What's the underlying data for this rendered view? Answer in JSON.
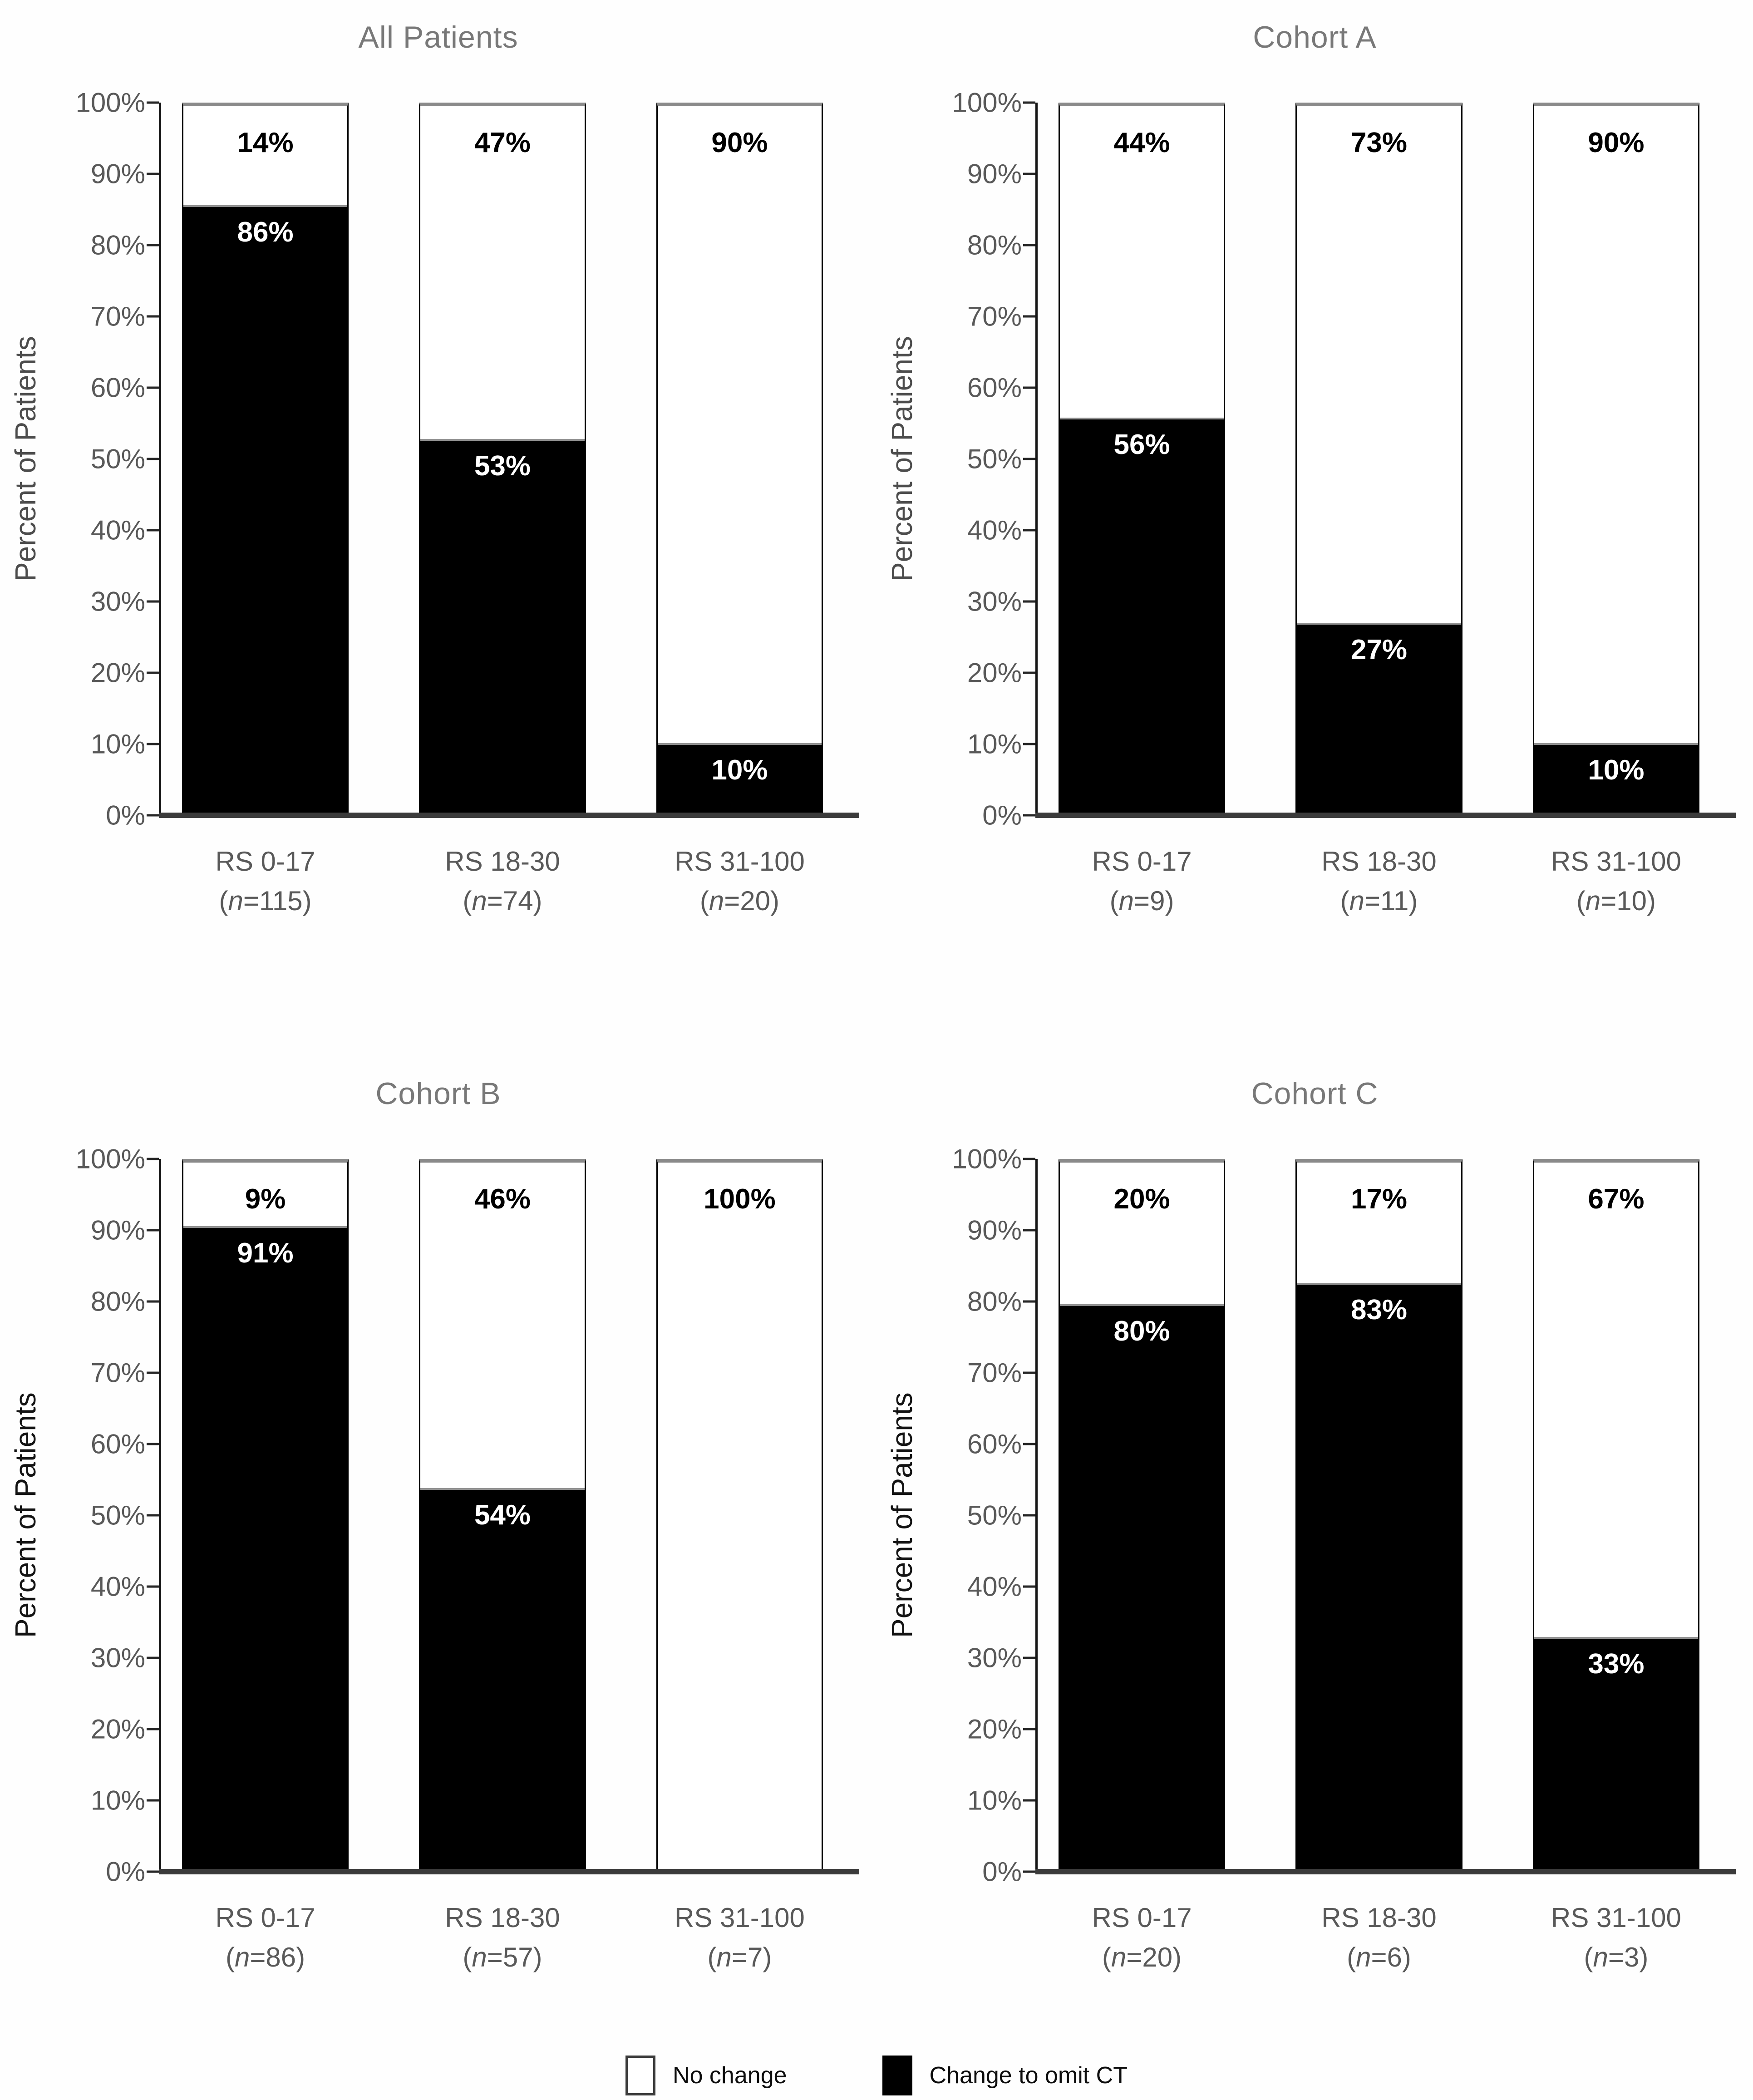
{
  "page": {
    "background": "#fefefe"
  },
  "colors": {
    "title": "#787878",
    "tick_label": "#595959",
    "y_axis_label_top": "#4c4c4c",
    "y_axis_label_bottom": "#131313",
    "axis_line": "#161616",
    "baseline": "#3b3b3b",
    "bar_fill_no_change": "#ffffff",
    "bar_fill_omit_ct": "#000000",
    "bar_border": "#000000",
    "bar_top_edge": "#8a8a8a"
  },
  "y_axis": {
    "label": "Percent of Patients",
    "ticks": [
      "100%",
      "90%",
      "80%",
      "70%",
      "60%",
      "50%",
      "40%",
      "30%",
      "20%",
      "10%",
      "0%"
    ]
  },
  "legend": {
    "items": [
      {
        "swatch": "#ffffff",
        "label": "No change"
      },
      {
        "swatch": "#000000",
        "label": "Change to omit CT"
      }
    ]
  },
  "chart_data": [
    {
      "type": "bar",
      "stacked": true,
      "title": "All Patients",
      "ylabel": "Percent of Patients",
      "ylim": [
        0,
        100
      ],
      "grid": false,
      "categories": [
        "RS 0-17",
        "RS 18-30",
        "RS 31-100"
      ],
      "n_values": [
        "115",
        "74",
        "20"
      ],
      "series": [
        {
          "name": "Change to omit CT",
          "color": "#000000",
          "values": [
            86,
            53,
            10
          ]
        },
        {
          "name": "No change",
          "color": "#ffffff",
          "values": [
            14,
            47,
            90
          ]
        }
      ],
      "bar_labels": {
        "black": [
          "86%",
          "53%",
          "10%"
        ],
        "white": [
          "14%",
          "47%",
          "90%"
        ]
      }
    },
    {
      "type": "bar",
      "stacked": true,
      "title": "Cohort A",
      "ylabel": "Percent of Patients",
      "ylim": [
        0,
        100
      ],
      "grid": false,
      "categories": [
        "RS 0-17",
        "RS 18-30",
        "RS 31-100"
      ],
      "n_values": [
        "9",
        "11",
        "10"
      ],
      "series": [
        {
          "name": "Change to omit CT",
          "color": "#000000",
          "values": [
            56,
            27,
            10
          ]
        },
        {
          "name": "No change",
          "color": "#ffffff",
          "values": [
            44,
            73,
            90
          ]
        }
      ],
      "bar_labels": {
        "black": [
          "56%",
          "27%",
          "10%"
        ],
        "white": [
          "44%",
          "73%",
          "90%"
        ]
      }
    },
    {
      "type": "bar",
      "stacked": true,
      "title": "Cohort B",
      "ylabel": "Percent of Patients",
      "ylim": [
        0,
        100
      ],
      "grid": false,
      "categories": [
        "RS 0-17",
        "RS 18-30",
        "RS 31-100"
      ],
      "n_values": [
        "86",
        "57",
        "7"
      ],
      "series": [
        {
          "name": "Change to omit CT",
          "color": "#000000",
          "values": [
            91,
            54,
            0
          ]
        },
        {
          "name": "No change",
          "color": "#ffffff",
          "values": [
            9,
            46,
            100
          ]
        }
      ],
      "bar_labels": {
        "black": [
          "91%",
          "54%",
          ""
        ],
        "white": [
          "9%",
          "46%",
          "100%"
        ]
      }
    },
    {
      "type": "bar",
      "stacked": true,
      "title": "Cohort C",
      "ylabel": "Percent of Patients",
      "ylim": [
        0,
        100
      ],
      "grid": false,
      "categories": [
        "RS 0-17",
        "RS 18-30",
        "RS 31-100"
      ],
      "n_values": [
        "20",
        "6",
        "3"
      ],
      "series": [
        {
          "name": "Change to omit CT",
          "color": "#000000",
          "values": [
            80,
            83,
            33
          ]
        },
        {
          "name": "No change",
          "color": "#ffffff",
          "values": [
            20,
            17,
            67
          ]
        }
      ],
      "bar_labels": {
        "black": [
          "80%",
          "83%",
          "33%"
        ],
        "white": [
          "20%",
          "17%",
          "67%"
        ]
      }
    }
  ]
}
